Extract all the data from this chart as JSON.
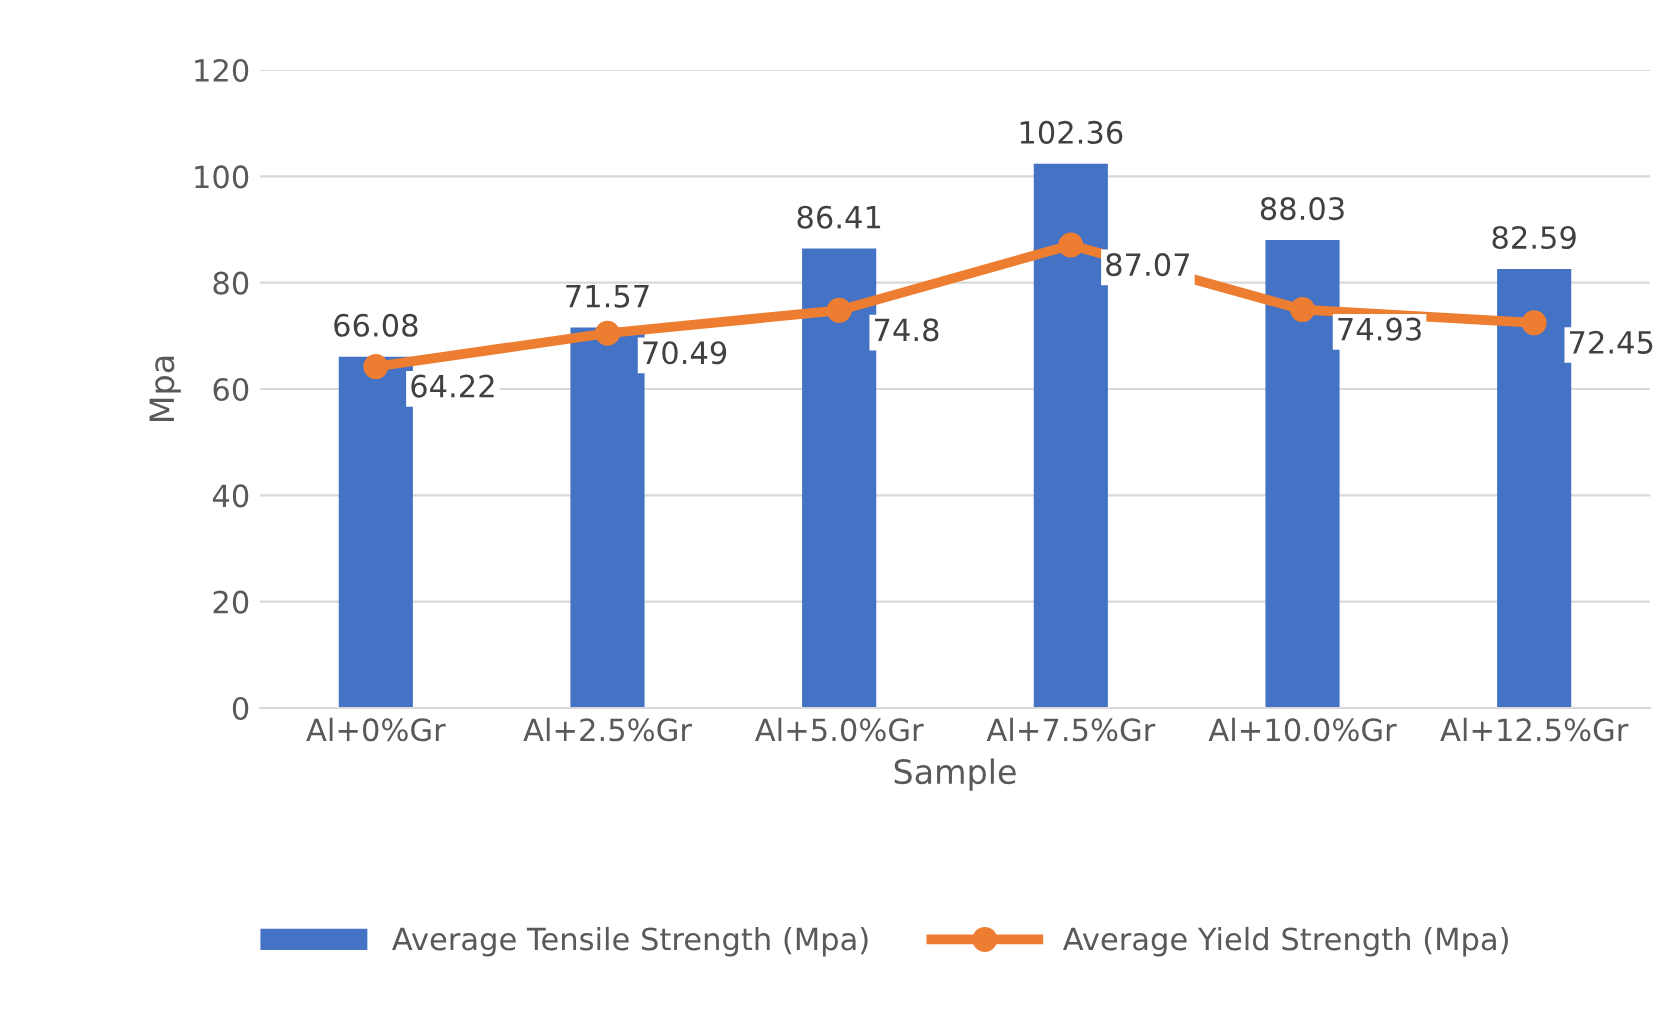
{
  "chart_data": {
    "type": "bar",
    "xlabel": "Sample",
    "ylabel": "Mpa",
    "categories": [
      "Al+0%Gr",
      "Al+2.5%Gr",
      "Al+5.0%Gr",
      "Al+7.5%Gr",
      "Al+10.0%Gr",
      "Al+12.5%Gr"
    ],
    "series": [
      {
        "name": "Average Tensile Strength (Mpa)",
        "color": "#4472c4",
        "values": [
          66.08,
          71.57,
          86.41,
          102.36,
          88.03,
          82.59
        ]
      },
      {
        "name": "Average Yield Strength (Mpa)",
        "type": "line",
        "color": "#ed7d31",
        "values": [
          64.22,
          70.49,
          74.8,
          87.07,
          74.93,
          72.45
        ]
      }
    ],
    "ylim": [
      0,
      120
    ],
    "yticks": [
      0,
      20,
      40,
      60,
      80,
      100,
      120
    ],
    "grid": "y",
    "legend": "bottom",
    "marker": "circle",
    "data_labels": true
  }
}
